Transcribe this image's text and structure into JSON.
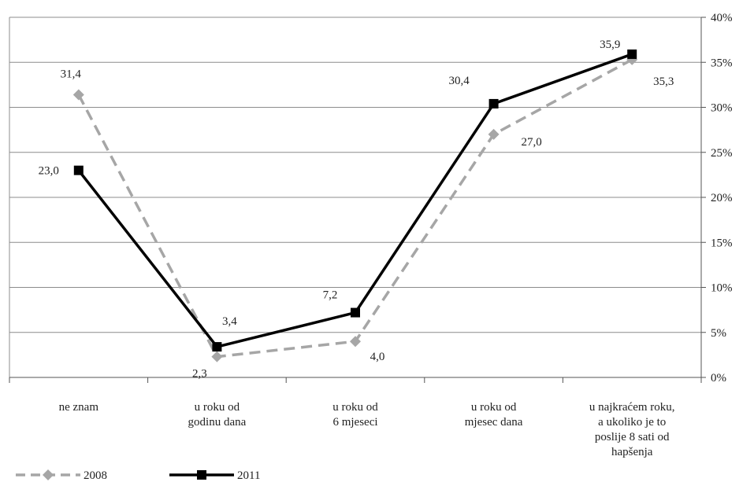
{
  "chart_data": {
    "type": "line",
    "title": "",
    "xlabel": "",
    "ylabel": "",
    "categories": [
      [
        "ne znam"
      ],
      [
        "u roku od",
        "godinu dana"
      ],
      [
        "u roku od",
        "6  mjeseci"
      ],
      [
        "u roku od",
        "mjesec  dana"
      ],
      [
        "u najkraćem roku,",
        "a ukoliko je to",
        "poslije 8 sati od",
        "hapšenja"
      ]
    ],
    "series": [
      {
        "name": "2008",
        "values": [
          31.4,
          2.3,
          4.0,
          27.0,
          35.3
        ],
        "labels": [
          "31,4",
          "2,3",
          "4,0",
          "27,0",
          "35,3"
        ],
        "color": "#a6a6a6",
        "style": "dashed",
        "marker": "diamond"
      },
      {
        "name": "2011",
        "values": [
          23.0,
          3.4,
          7.2,
          30.4,
          35.9
        ],
        "labels": [
          "23,0",
          "3,4",
          "7,2",
          "30,4",
          "35,9"
        ],
        "color": "#000000",
        "style": "solid",
        "marker": "square"
      }
    ],
    "y_axis": {
      "position": "right",
      "ylim": [
        0,
        40
      ],
      "ticks": [
        0,
        5,
        10,
        15,
        20,
        25,
        30,
        35,
        40
      ],
      "tick_labels": [
        "0%",
        "5%",
        "10%",
        "15%",
        "20%",
        "25%",
        "30%",
        "35%",
        "40%"
      ]
    },
    "grid": true,
    "legend_position": "bottom-left"
  }
}
